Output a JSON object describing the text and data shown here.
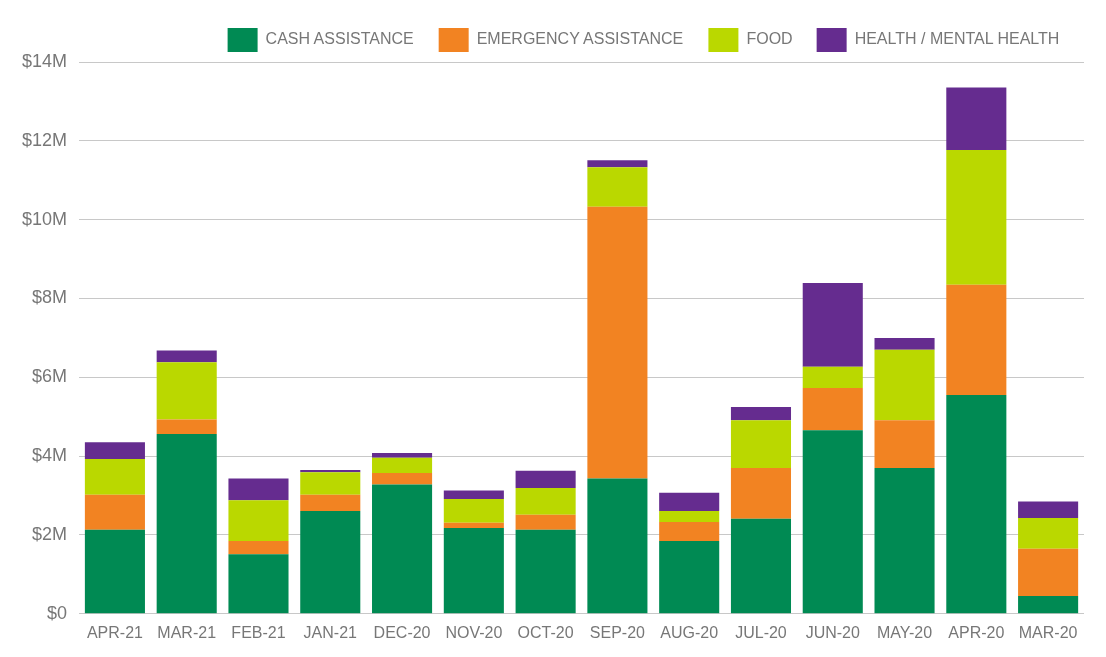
{
  "chart_data": {
    "type": "bar",
    "stacked": true,
    "categories": [
      "APR-21",
      "MAR-21",
      "FEB-21",
      "JAN-21",
      "DEC-20",
      "NOV-20",
      "OCT-20",
      "SEP-20",
      "AUG-20",
      "JUL-20",
      "JUN-20",
      "MAY-20",
      "APR-20",
      "MAR-20"
    ],
    "series": [
      {
        "name": "CASH ASSISTANCE",
        "color": "#008a53",
        "values": [
          2.13,
          4.56,
          1.51,
          2.61,
          3.28,
          2.18,
          2.13,
          3.43,
          1.85,
          2.41,
          4.66,
          3.7,
          5.55,
          0.45
        ]
      },
      {
        "name": "EMERGENCY ASSISTANCE",
        "color": "#f28322",
        "values": [
          0.89,
          0.37,
          0.34,
          0.41,
          0.29,
          0.13,
          0.38,
          6.9,
          0.48,
          1.29,
          1.07,
          1.21,
          2.8,
          1.2
        ]
      },
      {
        "name": "FOOD",
        "color": "#bad800",
        "values": [
          0.91,
          1.45,
          1.03,
          0.57,
          0.39,
          0.6,
          0.68,
          1.0,
          0.28,
          1.21,
          0.54,
          1.79,
          3.42,
          0.78
        ]
      },
      {
        "name": "HEALTH / MENTAL HEALTH",
        "color": "#652c8f",
        "values": [
          0.42,
          0.3,
          0.55,
          0.06,
          0.12,
          0.22,
          0.44,
          0.18,
          0.46,
          0.34,
          2.12,
          0.3,
          1.58,
          0.42
        ]
      }
    ],
    "ylim": [
      0,
      14
    ],
    "yticks": [
      {
        "value": 0,
        "label": "$0"
      },
      {
        "value": 2,
        "label": "$2M"
      },
      {
        "value": 4,
        "label": "$4M"
      },
      {
        "value": 6,
        "label": "$6M"
      },
      {
        "value": 8,
        "label": "$8M"
      },
      {
        "value": 10,
        "label": "$10M"
      },
      {
        "value": 12,
        "label": "$12M"
      },
      {
        "value": 14,
        "label": "$14M"
      }
    ],
    "grid": "y",
    "legend": "top right"
  }
}
